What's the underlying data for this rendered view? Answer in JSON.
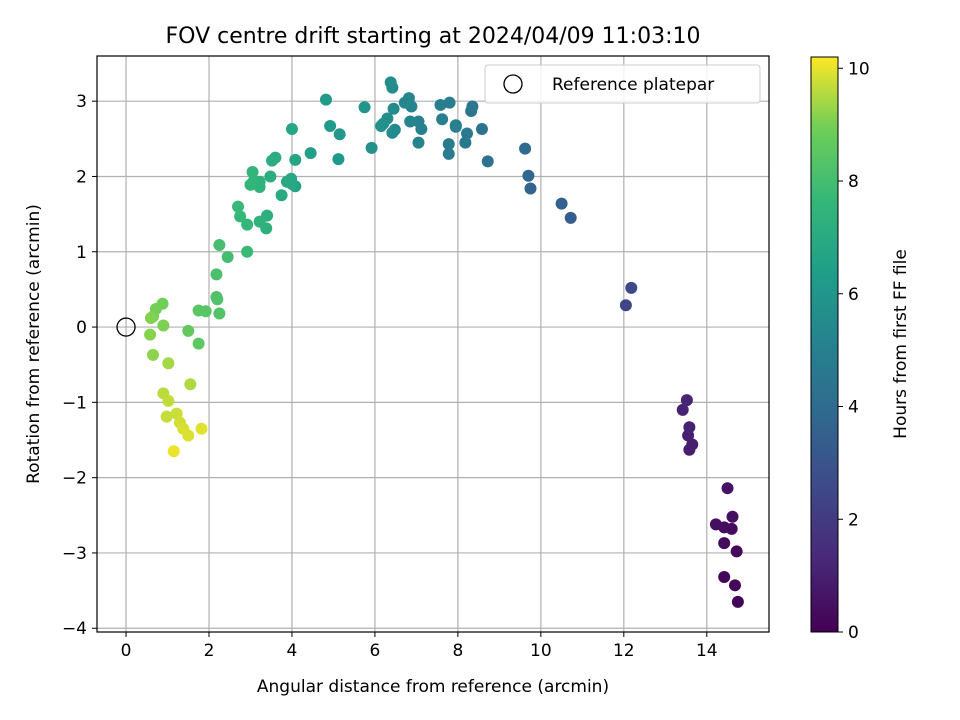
{
  "chart_data": {
    "type": "scatter",
    "title": "FOV centre drift starting at 2024/04/09 11:03:10",
    "xlabel": "Angular distance from reference (arcmin)",
    "ylabel": "Rotation from reference (arcmin)",
    "xlim": [
      -0.7,
      15.5
    ],
    "ylim": [
      -4.05,
      3.6
    ],
    "xticks": [
      0,
      2,
      4,
      6,
      8,
      10,
      12,
      14
    ],
    "yticks": [
      -4,
      -3,
      -2,
      -1,
      0,
      1,
      2,
      3
    ],
    "grid": true,
    "legend": {
      "position": "top-right",
      "entries": [
        "Reference platepar"
      ]
    },
    "reference_point": {
      "x": 0,
      "y": 0
    },
    "colorbar": {
      "label": "Hours from first FF file",
      "min": 0,
      "max": 10.2,
      "ticks": [
        0,
        2,
        4,
        6,
        8,
        10
      ],
      "colormap": "viridis"
    },
    "points": [
      {
        "x": 14.75,
        "y": -3.65,
        "t": 0.1
      },
      {
        "x": 14.68,
        "y": -3.43,
        "t": 0.15
      },
      {
        "x": 14.42,
        "y": -3.32,
        "t": 0.2
      },
      {
        "x": 14.72,
        "y": -2.98,
        "t": 0.25
      },
      {
        "x": 14.42,
        "y": -2.87,
        "t": 0.3
      },
      {
        "x": 14.6,
        "y": -2.68,
        "t": 0.35
      },
      {
        "x": 14.42,
        "y": -2.66,
        "t": 0.4
      },
      {
        "x": 14.22,
        "y": -2.62,
        "t": 0.45
      },
      {
        "x": 14.62,
        "y": -2.52,
        "t": 0.5
      },
      {
        "x": 14.5,
        "y": -2.14,
        "t": 0.55
      },
      {
        "x": 13.58,
        "y": -1.63,
        "t": 0.9
      },
      {
        "x": 13.65,
        "y": -1.56,
        "t": 0.95
      },
      {
        "x": 13.55,
        "y": -1.44,
        "t": 1.0
      },
      {
        "x": 13.58,
        "y": -1.33,
        "t": 1.05
      },
      {
        "x": 13.42,
        "y": -1.1,
        "t": 1.1
      },
      {
        "x": 13.52,
        "y": -0.97,
        "t": 1.15
      },
      {
        "x": 12.05,
        "y": 0.29,
        "t": 2.4
      },
      {
        "x": 12.18,
        "y": 0.52,
        "t": 2.5
      },
      {
        "x": 10.72,
        "y": 1.45,
        "t": 3.4
      },
      {
        "x": 10.5,
        "y": 1.64,
        "t": 3.5
      },
      {
        "x": 9.75,
        "y": 1.84,
        "t": 3.7
      },
      {
        "x": 9.7,
        "y": 2.01,
        "t": 3.8
      },
      {
        "x": 9.62,
        "y": 2.37,
        "t": 3.9
      },
      {
        "x": 8.72,
        "y": 2.2,
        "t": 4.3
      },
      {
        "x": 8.58,
        "y": 2.63,
        "t": 4.4
      },
      {
        "x": 8.32,
        "y": 2.87,
        "t": 4.5
      },
      {
        "x": 8.35,
        "y": 2.93,
        "t": 4.55
      },
      {
        "x": 8.18,
        "y": 2.45,
        "t": 4.6
      },
      {
        "x": 8.22,
        "y": 2.57,
        "t": 4.65
      },
      {
        "x": 7.95,
        "y": 2.66,
        "t": 4.7
      },
      {
        "x": 7.78,
        "y": 2.3,
        "t": 4.75
      },
      {
        "x": 7.78,
        "y": 2.43,
        "t": 4.8
      },
      {
        "x": 7.8,
        "y": 2.98,
        "t": 4.85
      },
      {
        "x": 7.62,
        "y": 2.76,
        "t": 4.9
      },
      {
        "x": 7.58,
        "y": 2.95,
        "t": 4.95
      },
      {
        "x": 7.95,
        "y": 2.68,
        "t": 5.0
      },
      {
        "x": 7.12,
        "y": 2.63,
        "t": 5.05
      },
      {
        "x": 7.05,
        "y": 2.73,
        "t": 5.1
      },
      {
        "x": 7.05,
        "y": 2.45,
        "t": 5.15
      },
      {
        "x": 6.88,
        "y": 2.93,
        "t": 5.2
      },
      {
        "x": 6.85,
        "y": 2.73,
        "t": 5.25
      },
      {
        "x": 6.82,
        "y": 3.04,
        "t": 5.3
      },
      {
        "x": 6.72,
        "y": 2.98,
        "t": 5.35
      },
      {
        "x": 6.48,
        "y": 2.62,
        "t": 5.4
      },
      {
        "x": 6.42,
        "y": 2.58,
        "t": 5.45
      },
      {
        "x": 6.45,
        "y": 2.9,
        "t": 5.5
      },
      {
        "x": 6.42,
        "y": 3.18,
        "t": 5.55
      },
      {
        "x": 6.38,
        "y": 3.25,
        "t": 5.6
      },
      {
        "x": 6.3,
        "y": 2.77,
        "t": 5.65
      },
      {
        "x": 6.2,
        "y": 2.7,
        "t": 5.7
      },
      {
        "x": 6.15,
        "y": 2.67,
        "t": 5.75
      },
      {
        "x": 5.92,
        "y": 2.38,
        "t": 5.85
      },
      {
        "x": 5.75,
        "y": 2.92,
        "t": 5.9
      },
      {
        "x": 5.15,
        "y": 2.56,
        "t": 6.1
      },
      {
        "x": 5.12,
        "y": 2.23,
        "t": 6.15
      },
      {
        "x": 4.92,
        "y": 2.67,
        "t": 6.2
      },
      {
        "x": 4.82,
        "y": 3.02,
        "t": 6.25
      },
      {
        "x": 4.45,
        "y": 2.31,
        "t": 6.5
      },
      {
        "x": 4.08,
        "y": 1.87,
        "t": 6.7
      },
      {
        "x": 4.08,
        "y": 2.22,
        "t": 6.75
      },
      {
        "x": 4.0,
        "y": 2.63,
        "t": 6.8
      },
      {
        "x": 4.0,
        "y": 1.9,
        "t": 6.85
      },
      {
        "x": 3.98,
        "y": 1.97,
        "t": 6.9
      },
      {
        "x": 3.88,
        "y": 1.93,
        "t": 6.95
      },
      {
        "x": 3.75,
        "y": 1.75,
        "t": 7.0
      },
      {
        "x": 3.6,
        "y": 2.25,
        "t": 7.05
      },
      {
        "x": 3.52,
        "y": 2.21,
        "t": 7.1
      },
      {
        "x": 3.48,
        "y": 2.0,
        "t": 7.15
      },
      {
        "x": 3.4,
        "y": 1.48,
        "t": 7.2
      },
      {
        "x": 3.38,
        "y": 1.31,
        "t": 7.25
      },
      {
        "x": 3.22,
        "y": 1.93,
        "t": 7.3
      },
      {
        "x": 3.22,
        "y": 1.86,
        "t": 7.35
      },
      {
        "x": 3.22,
        "y": 1.4,
        "t": 7.4
      },
      {
        "x": 3.08,
        "y": 1.94,
        "t": 7.45
      },
      {
        "x": 3.05,
        "y": 2.06,
        "t": 7.5
      },
      {
        "x": 3.0,
        "y": 1.89,
        "t": 7.55
      },
      {
        "x": 2.92,
        "y": 1.36,
        "t": 7.6
      },
      {
        "x": 2.75,
        "y": 1.47,
        "t": 7.65
      },
      {
        "x": 2.7,
        "y": 1.6,
        "t": 7.7
      },
      {
        "x": 2.92,
        "y": 1.0,
        "t": 7.75
      },
      {
        "x": 2.45,
        "y": 0.93,
        "t": 8.0
      },
      {
        "x": 2.25,
        "y": 1.09,
        "t": 8.05
      },
      {
        "x": 2.18,
        "y": 0.7,
        "t": 8.15
      },
      {
        "x": 2.18,
        "y": 0.4,
        "t": 8.2
      },
      {
        "x": 2.2,
        "y": 0.37,
        "t": 8.25
      },
      {
        "x": 2.25,
        "y": 0.18,
        "t": 8.3
      },
      {
        "x": 1.92,
        "y": 0.21,
        "t": 8.4
      },
      {
        "x": 1.75,
        "y": 0.22,
        "t": 8.45
      },
      {
        "x": 1.75,
        "y": -0.22,
        "t": 8.55
      },
      {
        "x": 1.5,
        "y": -0.05,
        "t": 8.65
      },
      {
        "x": 0.88,
        "y": 0.31,
        "t": 8.9
      },
      {
        "x": 0.72,
        "y": 0.24,
        "t": 8.95
      },
      {
        "x": 0.65,
        "y": 0.14,
        "t": 9.0
      },
      {
        "x": 0.9,
        "y": 0.02,
        "t": 9.05
      },
      {
        "x": 0.6,
        "y": 0.12,
        "t": 9.1
      },
      {
        "x": 0.58,
        "y": -0.1,
        "t": 9.15
      },
      {
        "x": 0.65,
        "y": -0.37,
        "t": 9.2
      },
      {
        "x": 1.02,
        "y": -0.48,
        "t": 9.4
      },
      {
        "x": 1.55,
        "y": -0.76,
        "t": 9.5
      },
      {
        "x": 0.9,
        "y": -0.88,
        "t": 9.6
      },
      {
        "x": 1.02,
        "y": -0.98,
        "t": 9.65
      },
      {
        "x": 0.98,
        "y": -1.19,
        "t": 9.7
      },
      {
        "x": 1.22,
        "y": -1.15,
        "t": 9.75
      },
      {
        "x": 1.3,
        "y": -1.27,
        "t": 9.8
      },
      {
        "x": 1.38,
        "y": -1.35,
        "t": 9.85
      },
      {
        "x": 1.5,
        "y": -1.44,
        "t": 9.9
      },
      {
        "x": 1.82,
        "y": -1.35,
        "t": 9.95
      },
      {
        "x": 1.15,
        "y": -1.65,
        "t": 10.05
      }
    ]
  }
}
